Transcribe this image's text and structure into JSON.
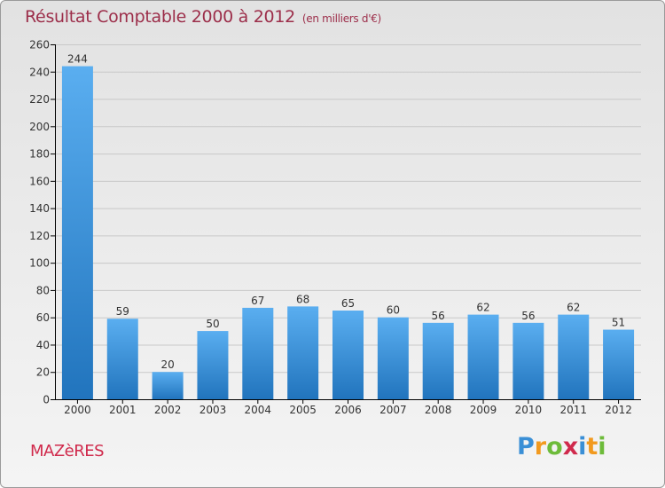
{
  "header": {
    "title": "Résultat Comptable 2000 à 2012",
    "subtitle": "(en milliers d'€)"
  },
  "footer": {
    "city": "MAZèRES"
  },
  "logo": {
    "text": "Proxiti",
    "letters": [
      "P",
      "r",
      "o",
      "x",
      "i",
      "t",
      "i"
    ],
    "colors": [
      "#3a8fd6",
      "#f29a1f",
      "#6dbb3a",
      "#d02a4c",
      "#3a8fd6",
      "#f29a1f",
      "#6dbb3a"
    ]
  },
  "colors": {
    "bar_light": "#5aaef0",
    "bar_dark": "#2174bd",
    "grid": "#c8c8c8",
    "axis": "#000000"
  },
  "chart_data": {
    "type": "bar",
    "title": "Résultat Comptable 2000 à 2012",
    "subtitle": "(en milliers d'€)",
    "categories": [
      "2000",
      "2001",
      "2002",
      "2003",
      "2004",
      "2005",
      "2006",
      "2007",
      "2008",
      "2009",
      "2010",
      "2011",
      "2012"
    ],
    "values": [
      244,
      59,
      20,
      50,
      67,
      68,
      65,
      60,
      56,
      62,
      56,
      62,
      51
    ],
    "ylim": [
      0,
      260
    ],
    "yticks": [
      0,
      20,
      40,
      60,
      80,
      100,
      120,
      140,
      160,
      180,
      200,
      220,
      240,
      260
    ],
    "grid": true,
    "data_labels": true
  }
}
